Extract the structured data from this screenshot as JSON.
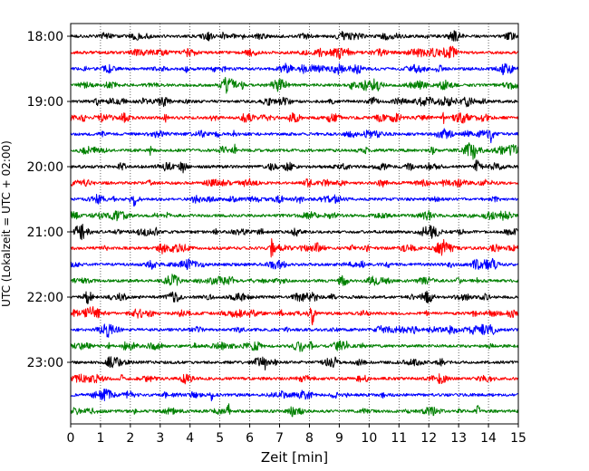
{
  "chart_data": {
    "type": "line",
    "title": "",
    "xlabel": "Zeit  [min]",
    "ylabel": "UTC (Lokalzeit = UTC + 02:00)",
    "xlim": [
      0,
      15
    ],
    "x_ticks": [
      0,
      1,
      2,
      3,
      4,
      5,
      6,
      7,
      8,
      9,
      10,
      11,
      12,
      13,
      14,
      15
    ],
    "x_tick_labels": [
      "0",
      "1",
      "2",
      "3",
      "4",
      "5",
      "6",
      "7",
      "8",
      "9",
      "10",
      "11",
      "12",
      "13",
      "14",
      "15"
    ],
    "vertical_grid": true,
    "grid_style": "dotted",
    "row_interval_minutes": 15,
    "y_tick_labels": [
      "18:00",
      "19:00",
      "20:00",
      "21:00",
      "22:00",
      "23:00"
    ],
    "color_cycle": [
      "#000000",
      "#ff0000",
      "#0000ff",
      "#008000"
    ],
    "rows": [
      {
        "start": "18:00",
        "events": []
      },
      {
        "start": "18:15",
        "events": []
      },
      {
        "start": "18:30",
        "events": []
      },
      {
        "start": "18:45",
        "events": []
      },
      {
        "start": "19:00",
        "events": []
      },
      {
        "start": "19:15",
        "events": [
          {
            "t": 12.5,
            "amplitude": 7
          }
        ]
      },
      {
        "start": "19:30",
        "events": [
          {
            "t": 14.1,
            "amplitude": 7
          }
        ]
      },
      {
        "start": "19:45",
        "events": [
          {
            "t": 5.5,
            "amplitude": 7
          }
        ]
      },
      {
        "start": "20:00",
        "events": [
          {
            "t": 13.6,
            "amplitude": 8
          }
        ]
      },
      {
        "start": "20:15",
        "events": []
      },
      {
        "start": "20:30",
        "events": []
      },
      {
        "start": "20:45",
        "events": []
      },
      {
        "start": "21:00",
        "events": []
      },
      {
        "start": "21:15",
        "events": [
          {
            "t": 6.75,
            "amplitude": 14
          }
        ]
      },
      {
        "start": "21:30",
        "events": []
      },
      {
        "start": "21:45",
        "events": []
      },
      {
        "start": "22:00",
        "events": []
      },
      {
        "start": "22:15",
        "events": [
          {
            "t": 8.1,
            "amplitude": 8
          }
        ]
      },
      {
        "start": "22:30",
        "events": []
      },
      {
        "start": "22:45",
        "events": []
      },
      {
        "start": "23:00",
        "events": [
          {
            "t": 6.5,
            "amplitude": 6
          }
        ]
      },
      {
        "start": "23:15",
        "events": []
      },
      {
        "start": "23:30",
        "events": [
          {
            "t": 4.7,
            "amplitude": 7
          }
        ]
      },
      {
        "start": "23:45",
        "events": [
          {
            "t": 5.3,
            "amplitude": 6
          }
        ]
      }
    ]
  }
}
